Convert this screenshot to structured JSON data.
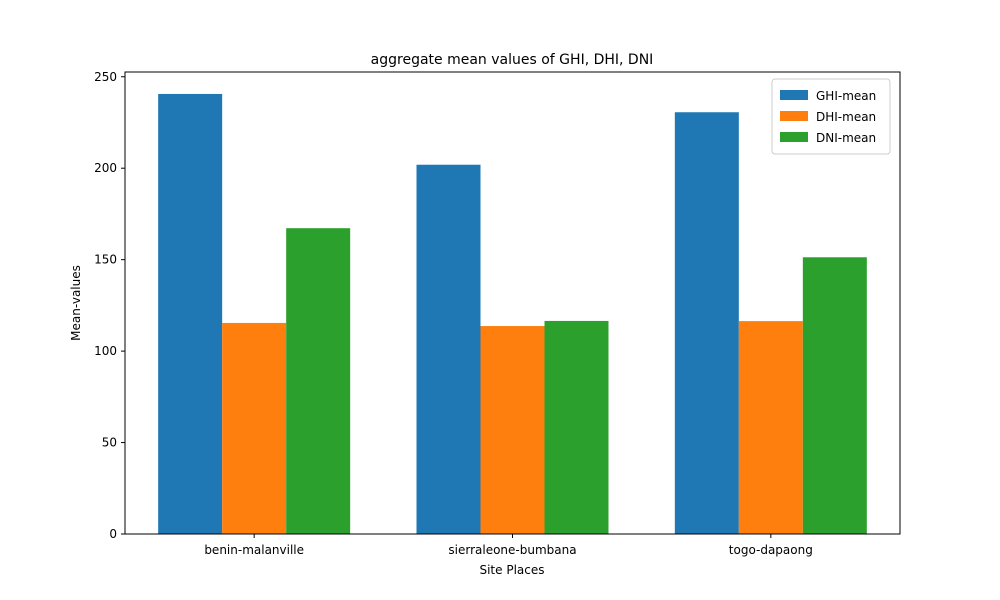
{
  "chart_data": {
    "type": "bar",
    "title": "aggregate mean values of GHI, DHI, DNI",
    "xlabel": "Site Places",
    "ylabel": "Mean-values",
    "categories": [
      "benin-malanville",
      "sierraleone-bumbana",
      "togo-dapaong"
    ],
    "series": [
      {
        "name": "GHI-mean",
        "color": "#1f77b4",
        "values": [
          240.6,
          201.9,
          230.6
        ]
      },
      {
        "name": "DHI-mean",
        "color": "#ff7f0e",
        "values": [
          115.4,
          113.7,
          116.4
        ]
      },
      {
        "name": "DNI-mean",
        "color": "#2ca02c",
        "values": [
          167.2,
          116.5,
          151.3
        ]
      }
    ],
    "ylim": [
      0,
      252.6
    ],
    "yticks": [
      0,
      50,
      100,
      150,
      200,
      250
    ],
    "grid": false,
    "legend_position": "top-right"
  }
}
